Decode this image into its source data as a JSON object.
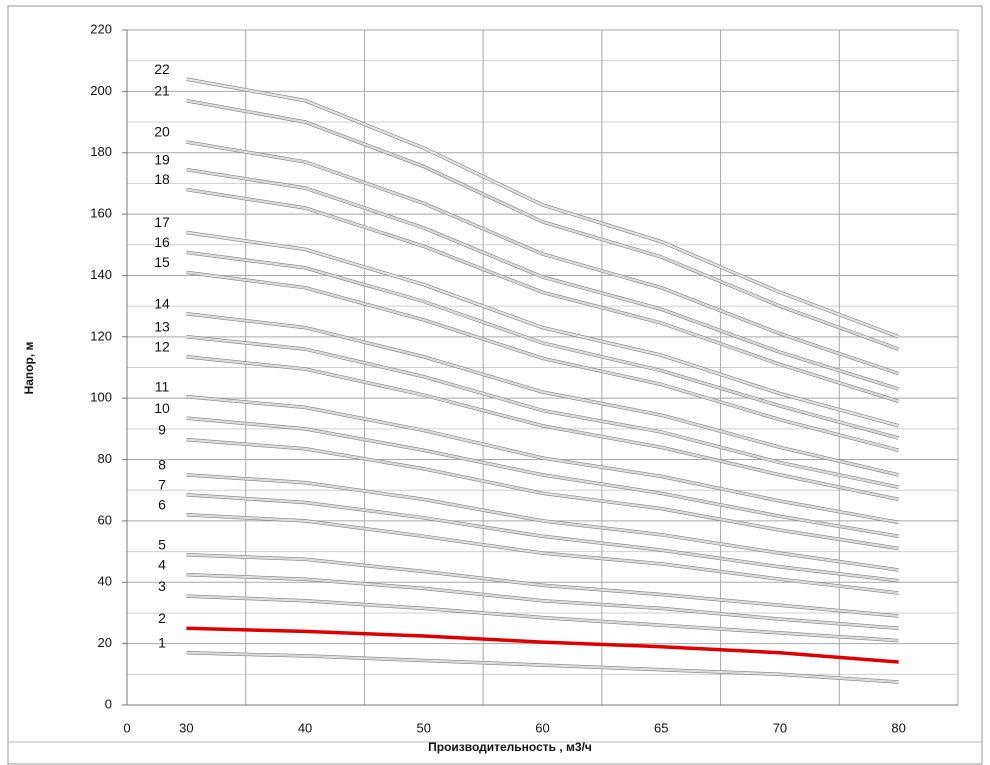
{
  "chart_data": {
    "type": "line",
    "ylabel": "Напор, м",
    "xlabel": "Производительность , м3/ч",
    "x_origin_label": "0",
    "categories": [
      "30",
      "40",
      "50",
      "60",
      "65",
      "70",
      "80"
    ],
    "ylim": [
      0,
      220
    ],
    "yticks": [
      0,
      20,
      40,
      60,
      80,
      100,
      120,
      140,
      160,
      180,
      200,
      220
    ],
    "grid": true,
    "series": [
      {
        "name": "1",
        "color": "#bdbdbd",
        "values": [
          17,
          16,
          14.5,
          13,
          11.5,
          10,
          7.5
        ]
      },
      {
        "name": "2",
        "color": "#e00000",
        "values": [
          25,
          24,
          22.5,
          20.5,
          19,
          17,
          14
        ]
      },
      {
        "name": "3",
        "color": "#bdbdbd",
        "values": [
          35.5,
          34,
          31.5,
          28.5,
          26,
          23.5,
          21
        ]
      },
      {
        "name": "4",
        "color": "#bdbdbd",
        "values": [
          42.5,
          41,
          38,
          34,
          31.5,
          28,
          25
        ]
      },
      {
        "name": "5",
        "color": "#bdbdbd",
        "values": [
          49,
          47.5,
          43.5,
          39,
          36,
          32.5,
          29
        ]
      },
      {
        "name": "6",
        "color": "#bdbdbd",
        "values": [
          62,
          60,
          55,
          49.5,
          46,
          41,
          36.5
        ]
      },
      {
        "name": "7",
        "color": "#bdbdbd",
        "values": [
          68.5,
          66,
          61,
          55,
          50.5,
          45,
          40.5
        ]
      },
      {
        "name": "8",
        "color": "#bdbdbd",
        "values": [
          75,
          72.5,
          67,
          60,
          55.5,
          49.5,
          44
        ]
      },
      {
        "name": "9",
        "color": "#bdbdbd",
        "values": [
          86.5,
          83.5,
          77,
          69,
          64,
          57,
          51
        ]
      },
      {
        "name": "10",
        "color": "#bdbdbd",
        "values": [
          93.5,
          90,
          83,
          75,
          69,
          61.5,
          55
        ]
      },
      {
        "name": "11",
        "color": "#bdbdbd",
        "values": [
          100.5,
          97,
          89.5,
          80.5,
          74.5,
          66.5,
          59.5
        ]
      },
      {
        "name": "12",
        "color": "#bdbdbd",
        "values": [
          113.5,
          109.5,
          101,
          91,
          84,
          75,
          67
        ]
      },
      {
        "name": "13",
        "color": "#bdbdbd",
        "values": [
          120,
          116,
          107,
          96,
          89,
          79,
          71
        ]
      },
      {
        "name": "14",
        "color": "#bdbdbd",
        "values": [
          127.5,
          123,
          113.5,
          102,
          94.5,
          84,
          75
        ]
      },
      {
        "name": "15",
        "color": "#bdbdbd",
        "values": [
          141,
          136,
          125.5,
          113,
          104.5,
          93,
          83
        ]
      },
      {
        "name": "16",
        "color": "#bdbdbd",
        "values": [
          147.5,
          142.5,
          131.5,
          118,
          109,
          97.5,
          87
        ]
      },
      {
        "name": "17",
        "color": "#d4d4d4",
        "values": [
          154,
          148.5,
          137,
          123,
          114,
          101.5,
          91
        ]
      },
      {
        "name": "18",
        "color": "#bdbdbd",
        "values": [
          168,
          162,
          149.5,
          134.5,
          124.5,
          111,
          99
        ]
      },
      {
        "name": "19",
        "color": "#bdbdbd",
        "values": [
          174.5,
          168.5,
          155.5,
          139.5,
          129,
          115,
          103
        ]
      },
      {
        "name": "20",
        "color": "#bdbdbd",
        "values": [
          183.5,
          177,
          163.5,
          147,
          136,
          121,
          108
        ]
      },
      {
        "name": "21",
        "color": "#bdbdbd",
        "values": [
          197,
          190,
          175.5,
          157.5,
          146,
          130,
          116
        ]
      },
      {
        "name": "22",
        "color": "#d4d4d4",
        "values": [
          204,
          197,
          181.5,
          163,
          151,
          134.5,
          120
        ]
      }
    ]
  }
}
